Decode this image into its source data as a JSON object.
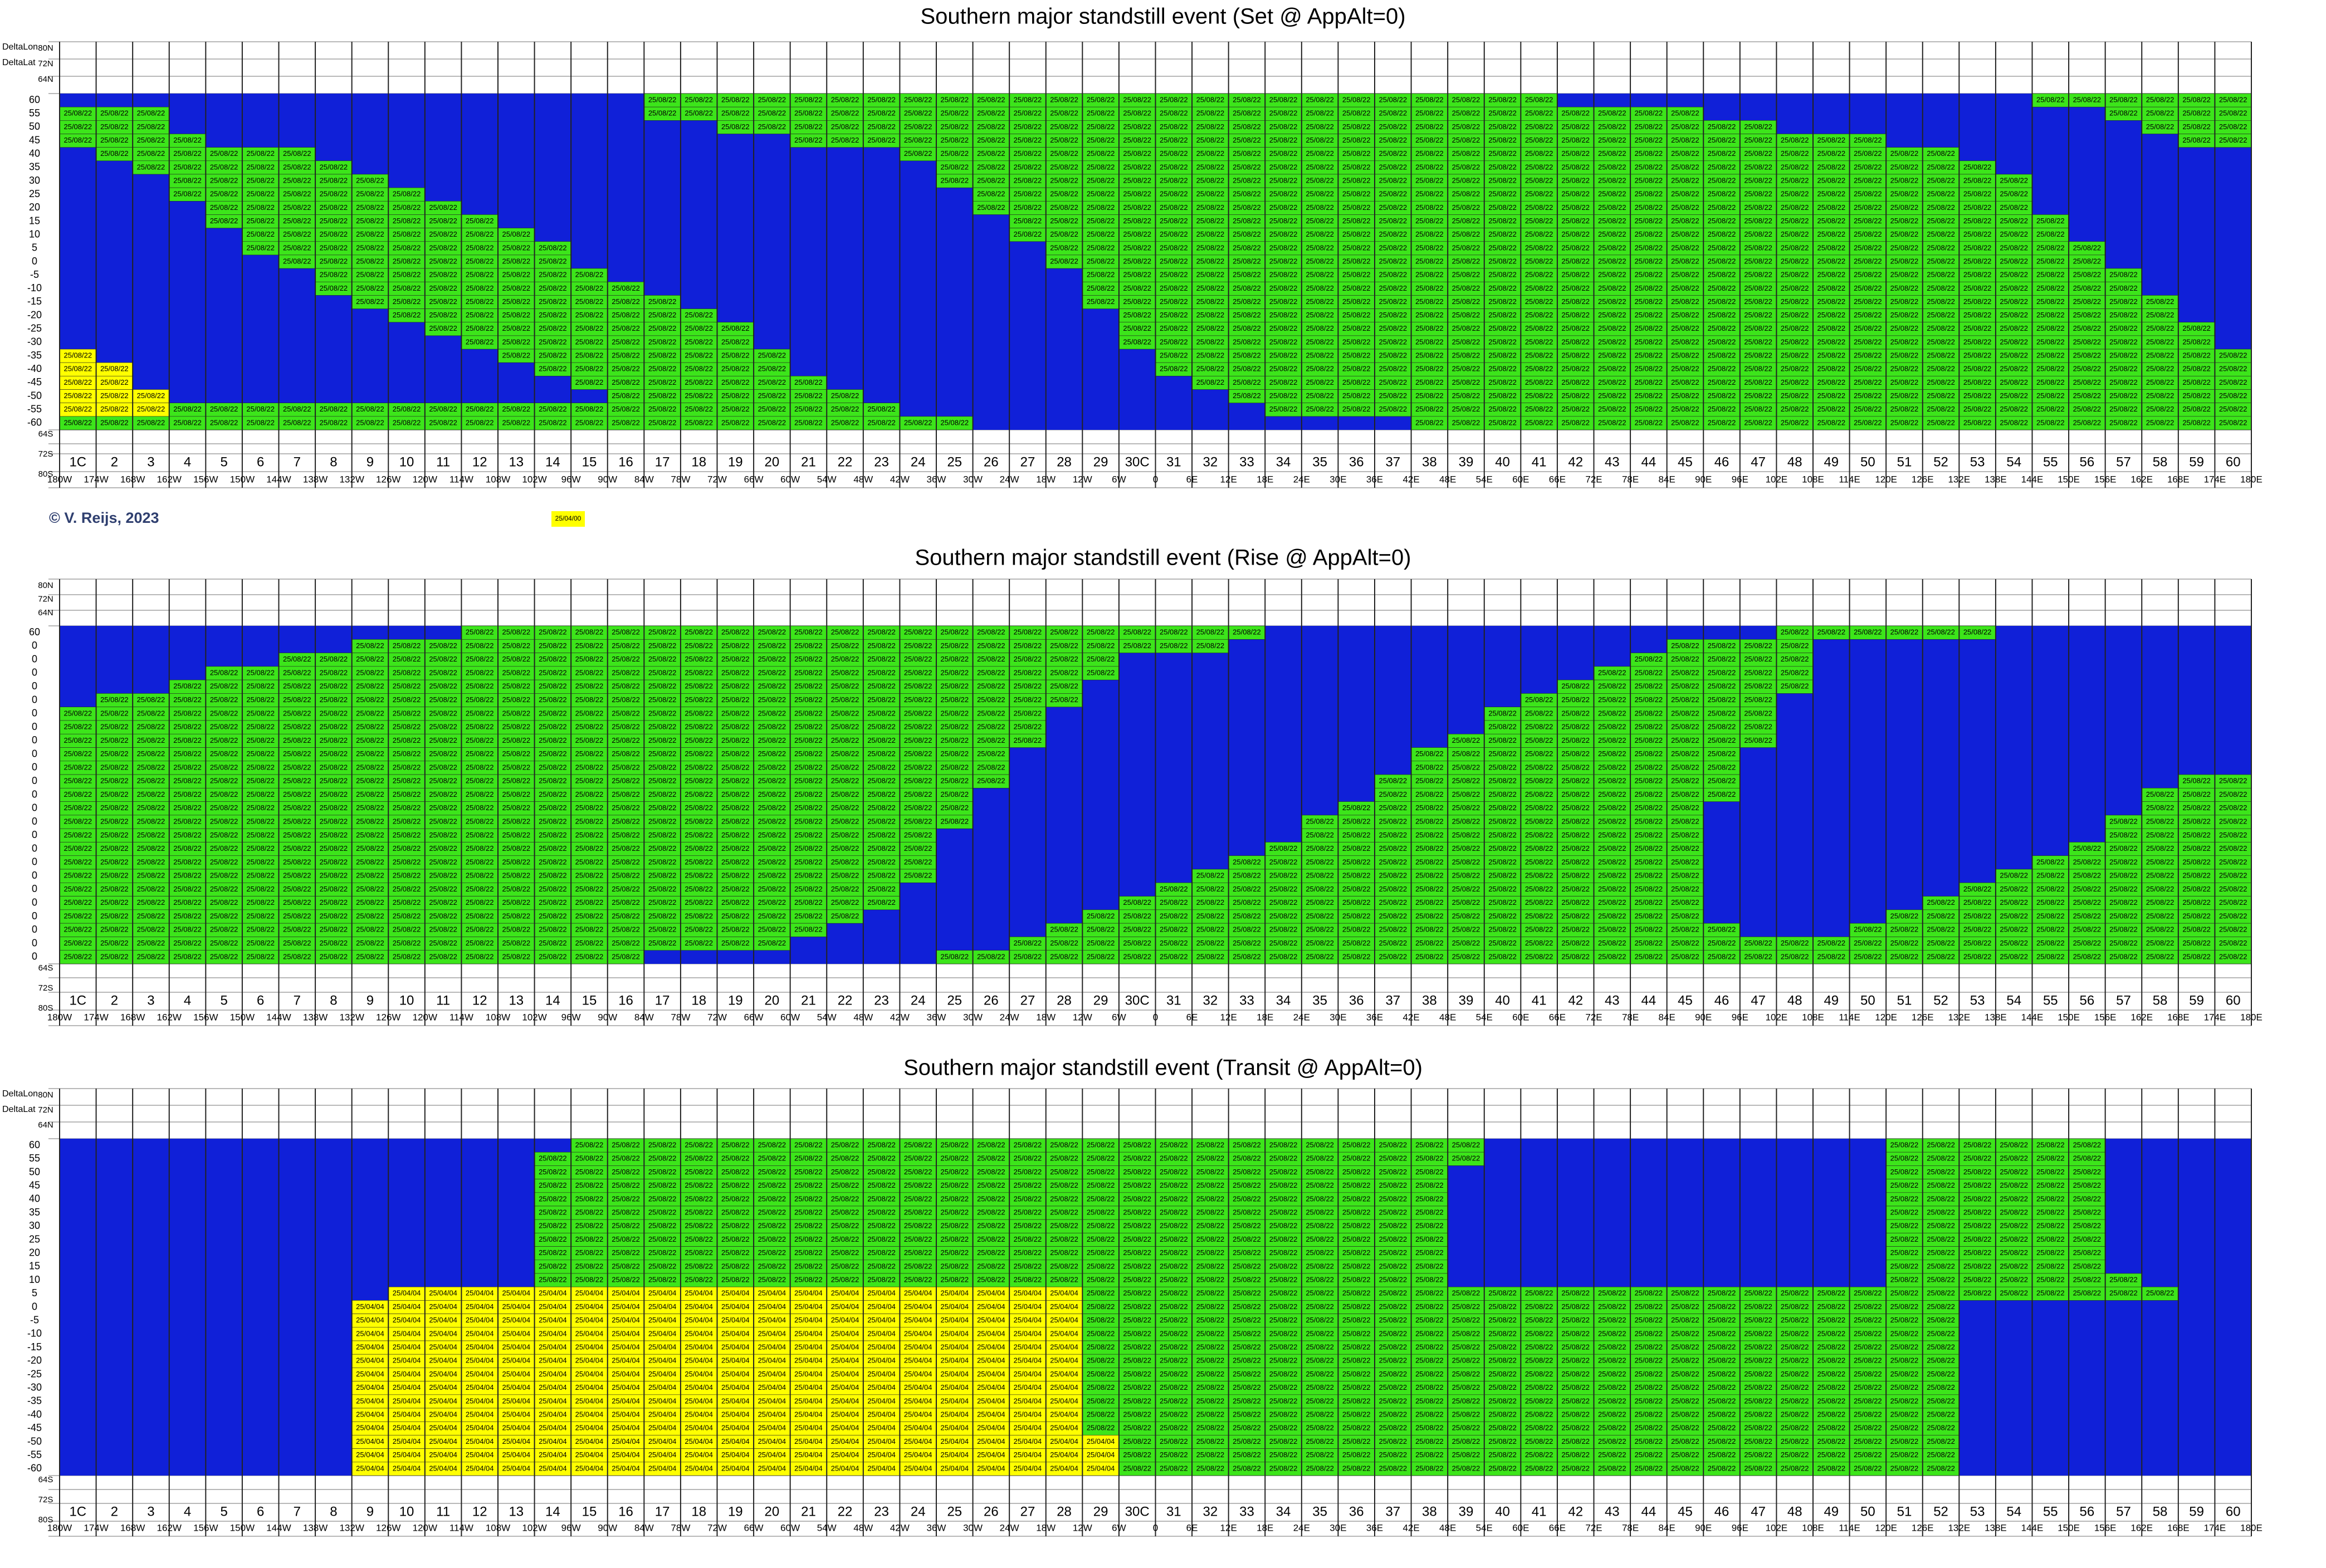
{
  "copyright": "© V. Reijs, 2023",
  "legend_note": "25/04/00",
  "colors": {
    "B": "#1020d8",
    "G": "#3ce51a",
    "Y": "#ffff00"
  },
  "zones": [
    "1C",
    "2",
    "3",
    "4",
    "5",
    "6",
    "7",
    "8",
    "9",
    "10",
    "11",
    "12",
    "13",
    "14",
    "15",
    "16",
    "17",
    "18",
    "19",
    "20",
    "21",
    "22",
    "23",
    "24",
    "25",
    "26",
    "27",
    "28",
    "29",
    "30C",
    "31",
    "32",
    "33",
    "34",
    "35",
    "36",
    "37",
    "38",
    "39",
    "40",
    "41",
    "42",
    "43",
    "44",
    "45",
    "46",
    "47",
    "48",
    "49",
    "50",
    "51",
    "52",
    "53",
    "54",
    "55",
    "56",
    "57",
    "58",
    "59",
    "60"
  ],
  "longitudes": [
    "180W",
    "174W",
    "168W",
    "162W",
    "156W",
    "150W",
    "144W",
    "138W",
    "132W",
    "126W",
    "120W",
    "114W",
    "108W",
    "102W",
    "96W",
    "90W",
    "84W",
    "78W",
    "72W",
    "66W",
    "60W",
    "54W",
    "48W",
    "42W",
    "36W",
    "30W",
    "24W",
    "18W",
    "12W",
    "6W",
    "0",
    "6E",
    "12E",
    "18E",
    "24E",
    "30E",
    "36E",
    "42E",
    "48E",
    "54E",
    "60E",
    "66E",
    "72E",
    "78E",
    "84E",
    "90E",
    "96E",
    "102E",
    "108E",
    "114E",
    "120E",
    "126E",
    "132E",
    "138E",
    "144E",
    "150E",
    "156E",
    "162E",
    "168E",
    "174E",
    "180E"
  ],
  "header_top": [
    "80N",
    "72N",
    "64N"
  ],
  "header_bottom": [
    "64S",
    "72S",
    "80S"
  ],
  "panels": [
    {
      "title": "Southern major standstill event (Set @ AppAlt=0)",
      "side_labels": [
        "DeltaLon",
        "DeltaLat"
      ],
      "row_labels": [
        60,
        55,
        50,
        45,
        40,
        35,
        30,
        25,
        20,
        15,
        10,
        5,
        0,
        -5,
        -10,
        -15,
        -20,
        -25,
        -30,
        -35,
        -40,
        -45,
        -50,
        -55,
        -60
      ],
      "cell_labels": {
        "G": "25/08/22",
        "Y": "25/08/22"
      },
      "rows": [
        [
          [
            16,
            40,
            "G"
          ],
          [
            54,
            59,
            "G"
          ]
        ],
        [
          [
            0,
            2,
            "G"
          ],
          [
            16,
            44,
            "G"
          ],
          [
            56,
            59,
            "G"
          ]
        ],
        [
          [
            0,
            2,
            "G"
          ],
          [
            18,
            46,
            "G"
          ],
          [
            57,
            59,
            "G"
          ]
        ],
        [
          [
            0,
            3,
            "G"
          ],
          [
            20,
            49,
            "G"
          ],
          [
            58,
            59,
            "G"
          ]
        ],
        [
          [
            1,
            6,
            "G"
          ],
          [
            23,
            51,
            "G"
          ]
        ],
        [
          [
            2,
            7,
            "G"
          ],
          [
            24,
            52,
            "G"
          ]
        ],
        [
          [
            3,
            8,
            "G"
          ],
          [
            24,
            53,
            "G"
          ]
        ],
        [
          [
            3,
            9,
            "G"
          ],
          [
            25,
            53,
            "G"
          ]
        ],
        [
          [
            4,
            10,
            "G"
          ],
          [
            25,
            53,
            "G"
          ]
        ],
        [
          [
            4,
            11,
            "G"
          ],
          [
            26,
            54,
            "G"
          ]
        ],
        [
          [
            5,
            12,
            "G"
          ],
          [
            26,
            54,
            "G"
          ]
        ],
        [
          [
            5,
            13,
            "G"
          ],
          [
            27,
            55,
            "G"
          ]
        ],
        [
          [
            6,
            13,
            "G"
          ],
          [
            27,
            55,
            "G"
          ]
        ],
        [
          [
            7,
            14,
            "G"
          ],
          [
            28,
            56,
            "G"
          ]
        ],
        [
          [
            7,
            15,
            "G"
          ],
          [
            28,
            56,
            "G"
          ]
        ],
        [
          [
            8,
            16,
            "G"
          ],
          [
            28,
            57,
            "G"
          ]
        ],
        [
          [
            9,
            17,
            "G"
          ],
          [
            29,
            57,
            "G"
          ]
        ],
        [
          [
            10,
            18,
            "G"
          ],
          [
            29,
            58,
            "G"
          ]
        ],
        [
          [
            11,
            18,
            "G"
          ],
          [
            29,
            58,
            "G"
          ]
        ],
        [
          [
            0,
            0,
            "Y"
          ],
          [
            12,
            19,
            "G"
          ],
          [
            30,
            59,
            "G"
          ]
        ],
        [
          [
            0,
            1,
            "Y"
          ],
          [
            13,
            19,
            "G"
          ],
          [
            30,
            59,
            "G"
          ]
        ],
        [
          [
            0,
            1,
            "Y"
          ],
          [
            14,
            20,
            "G"
          ],
          [
            31,
            59,
            "G"
          ]
        ],
        [
          [
            0,
            2,
            "Y"
          ],
          [
            15,
            21,
            "G"
          ],
          [
            32,
            59,
            "G"
          ]
        ],
        [
          [
            0,
            2,
            "Y"
          ],
          [
            3,
            22,
            "G"
          ],
          [
            33,
            59,
            "G"
          ]
        ],
        [
          [
            0,
            24,
            "G"
          ],
          [
            37,
            59,
            "G"
          ]
        ]
      ]
    },
    {
      "title": "Southern major standstill event (Rise @ AppAlt=0)",
      "row_labels": [
        60,
        0,
        0,
        0,
        0,
        0,
        0,
        0,
        0,
        0,
        0,
        0,
        0,
        0,
        0,
        0,
        0,
        0,
        0,
        0,
        0,
        0,
        0,
        0,
        0
      ],
      "cell_labels": {
        "G": "25/08/22"
      },
      "rows": [
        [
          [
            11,
            32,
            "G"
          ],
          [
            47,
            52,
            "G"
          ]
        ],
        [
          [
            8,
            31,
            "G"
          ],
          [
            44,
            47,
            "G"
          ]
        ],
        [
          [
            6,
            28,
            "G"
          ],
          [
            43,
            47,
            "G"
          ]
        ],
        [
          [
            4,
            28,
            "G"
          ],
          [
            42,
            47,
            "G"
          ]
        ],
        [
          [
            3,
            27,
            "G"
          ],
          [
            41,
            47,
            "G"
          ]
        ],
        [
          [
            1,
            27,
            "G"
          ],
          [
            40,
            46,
            "G"
          ]
        ],
        [
          [
            0,
            26,
            "G"
          ],
          [
            39,
            46,
            "G"
          ]
        ],
        [
          [
            0,
            26,
            "G"
          ],
          [
            39,
            46,
            "G"
          ]
        ],
        [
          [
            0,
            26,
            "G"
          ],
          [
            38,
            46,
            "G"
          ]
        ],
        [
          [
            0,
            25,
            "G"
          ],
          [
            37,
            45,
            "G"
          ]
        ],
        [
          [
            0,
            25,
            "G"
          ],
          [
            37,
            45,
            "G"
          ]
        ],
        [
          [
            0,
            25,
            "G"
          ],
          [
            36,
            45,
            "G"
          ],
          [
            58,
            59,
            "G"
          ]
        ],
        [
          [
            0,
            24,
            "G"
          ],
          [
            36,
            45,
            "G"
          ],
          [
            57,
            59,
            "G"
          ]
        ],
        [
          [
            0,
            24,
            "G"
          ],
          [
            35,
            44,
            "G"
          ],
          [
            57,
            59,
            "G"
          ]
        ],
        [
          [
            0,
            24,
            "G"
          ],
          [
            34,
            44,
            "G"
          ],
          [
            56,
            59,
            "G"
          ]
        ],
        [
          [
            0,
            23,
            "G"
          ],
          [
            34,
            44,
            "G"
          ],
          [
            56,
            59,
            "G"
          ]
        ],
        [
          [
            0,
            23,
            "G"
          ],
          [
            33,
            44,
            "G"
          ],
          [
            55,
            59,
            "G"
          ]
        ],
        [
          [
            0,
            23,
            "G"
          ],
          [
            32,
            44,
            "G"
          ],
          [
            54,
            59,
            "G"
          ]
        ],
        [
          [
            0,
            23,
            "G"
          ],
          [
            31,
            44,
            "G"
          ],
          [
            53,
            59,
            "G"
          ]
        ],
        [
          [
            0,
            22,
            "G"
          ],
          [
            30,
            44,
            "G"
          ],
          [
            52,
            59,
            "G"
          ]
        ],
        [
          [
            0,
            22,
            "G"
          ],
          [
            29,
            44,
            "G"
          ],
          [
            51,
            59,
            "G"
          ]
        ],
        [
          [
            0,
            21,
            "G"
          ],
          [
            28,
            44,
            "G"
          ],
          [
            50,
            59,
            "G"
          ]
        ],
        [
          [
            0,
            20,
            "G"
          ],
          [
            27,
            45,
            "G"
          ],
          [
            49,
            59,
            "G"
          ]
        ],
        [
          [
            0,
            19,
            "G"
          ],
          [
            26,
            46,
            "G"
          ],
          [
            47,
            59,
            "G"
          ]
        ],
        [
          [
            0,
            15,
            "G"
          ],
          [
            24,
            59,
            "G"
          ]
        ]
      ]
    },
    {
      "title": "Southern major standstill event (Transit @ AppAlt=0)",
      "side_labels": [
        "DeltaLon",
        "DeltaLat"
      ],
      "row_labels": [
        60,
        55,
        50,
        45,
        40,
        35,
        30,
        25,
        20,
        15,
        10,
        5,
        0,
        -5,
        -10,
        -15,
        -20,
        -25,
        -30,
        -35,
        -40,
        -45,
        -50,
        -55,
        -60
      ],
      "cell_labels": {
        "G": "25/08/22",
        "Y": "25/04/04"
      },
      "rows": [
        [
          [
            14,
            38,
            "G"
          ],
          [
            50,
            55,
            "G"
          ]
        ],
        [
          [
            13,
            38,
            "G"
          ],
          [
            50,
            55,
            "G"
          ]
        ],
        [
          [
            13,
            37,
            "G"
          ],
          [
            50,
            55,
            "G"
          ]
        ],
        [
          [
            13,
            37,
            "G"
          ],
          [
            50,
            55,
            "G"
          ]
        ],
        [
          [
            13,
            37,
            "G"
          ],
          [
            50,
            55,
            "G"
          ]
        ],
        [
          [
            13,
            37,
            "G"
          ],
          [
            50,
            55,
            "G"
          ]
        ],
        [
          [
            13,
            37,
            "G"
          ],
          [
            50,
            55,
            "G"
          ]
        ],
        [
          [
            13,
            37,
            "G"
          ],
          [
            50,
            55,
            "G"
          ]
        ],
        [
          [
            13,
            37,
            "G"
          ],
          [
            50,
            55,
            "G"
          ]
        ],
        [
          [
            13,
            37,
            "G"
          ],
          [
            50,
            55,
            "G"
          ]
        ],
        [
          [
            13,
            37,
            "G"
          ],
          [
            50,
            56,
            "G"
          ]
        ],
        [
          [
            9,
            27,
            "Y"
          ],
          [
            28,
            57,
            "G"
          ]
        ],
        [
          [
            8,
            27,
            "Y"
          ],
          [
            28,
            51,
            "G"
          ]
        ],
        [
          [
            8,
            27,
            "Y"
          ],
          [
            28,
            51,
            "G"
          ]
        ],
        [
          [
            8,
            27,
            "Y"
          ],
          [
            28,
            51,
            "G"
          ]
        ],
        [
          [
            8,
            27,
            "Y"
          ],
          [
            28,
            51,
            "G"
          ]
        ],
        [
          [
            8,
            27,
            "Y"
          ],
          [
            28,
            51,
            "G"
          ]
        ],
        [
          [
            8,
            27,
            "Y"
          ],
          [
            28,
            51,
            "G"
          ]
        ],
        [
          [
            8,
            27,
            "Y"
          ],
          [
            28,
            51,
            "G"
          ]
        ],
        [
          [
            8,
            27,
            "Y"
          ],
          [
            28,
            51,
            "G"
          ]
        ],
        [
          [
            8,
            27,
            "Y"
          ],
          [
            28,
            51,
            "G"
          ]
        ],
        [
          [
            8,
            27,
            "Y"
          ],
          [
            28,
            51,
            "G"
          ]
        ],
        [
          [
            8,
            28,
            "Y"
          ],
          [
            29,
            51,
            "G"
          ]
        ],
        [
          [
            8,
            28,
            "Y"
          ],
          [
            29,
            51,
            "G"
          ]
        ],
        [
          [
            8,
            28,
            "Y"
          ],
          [
            29,
            51,
            "G"
          ]
        ]
      ]
    }
  ]
}
